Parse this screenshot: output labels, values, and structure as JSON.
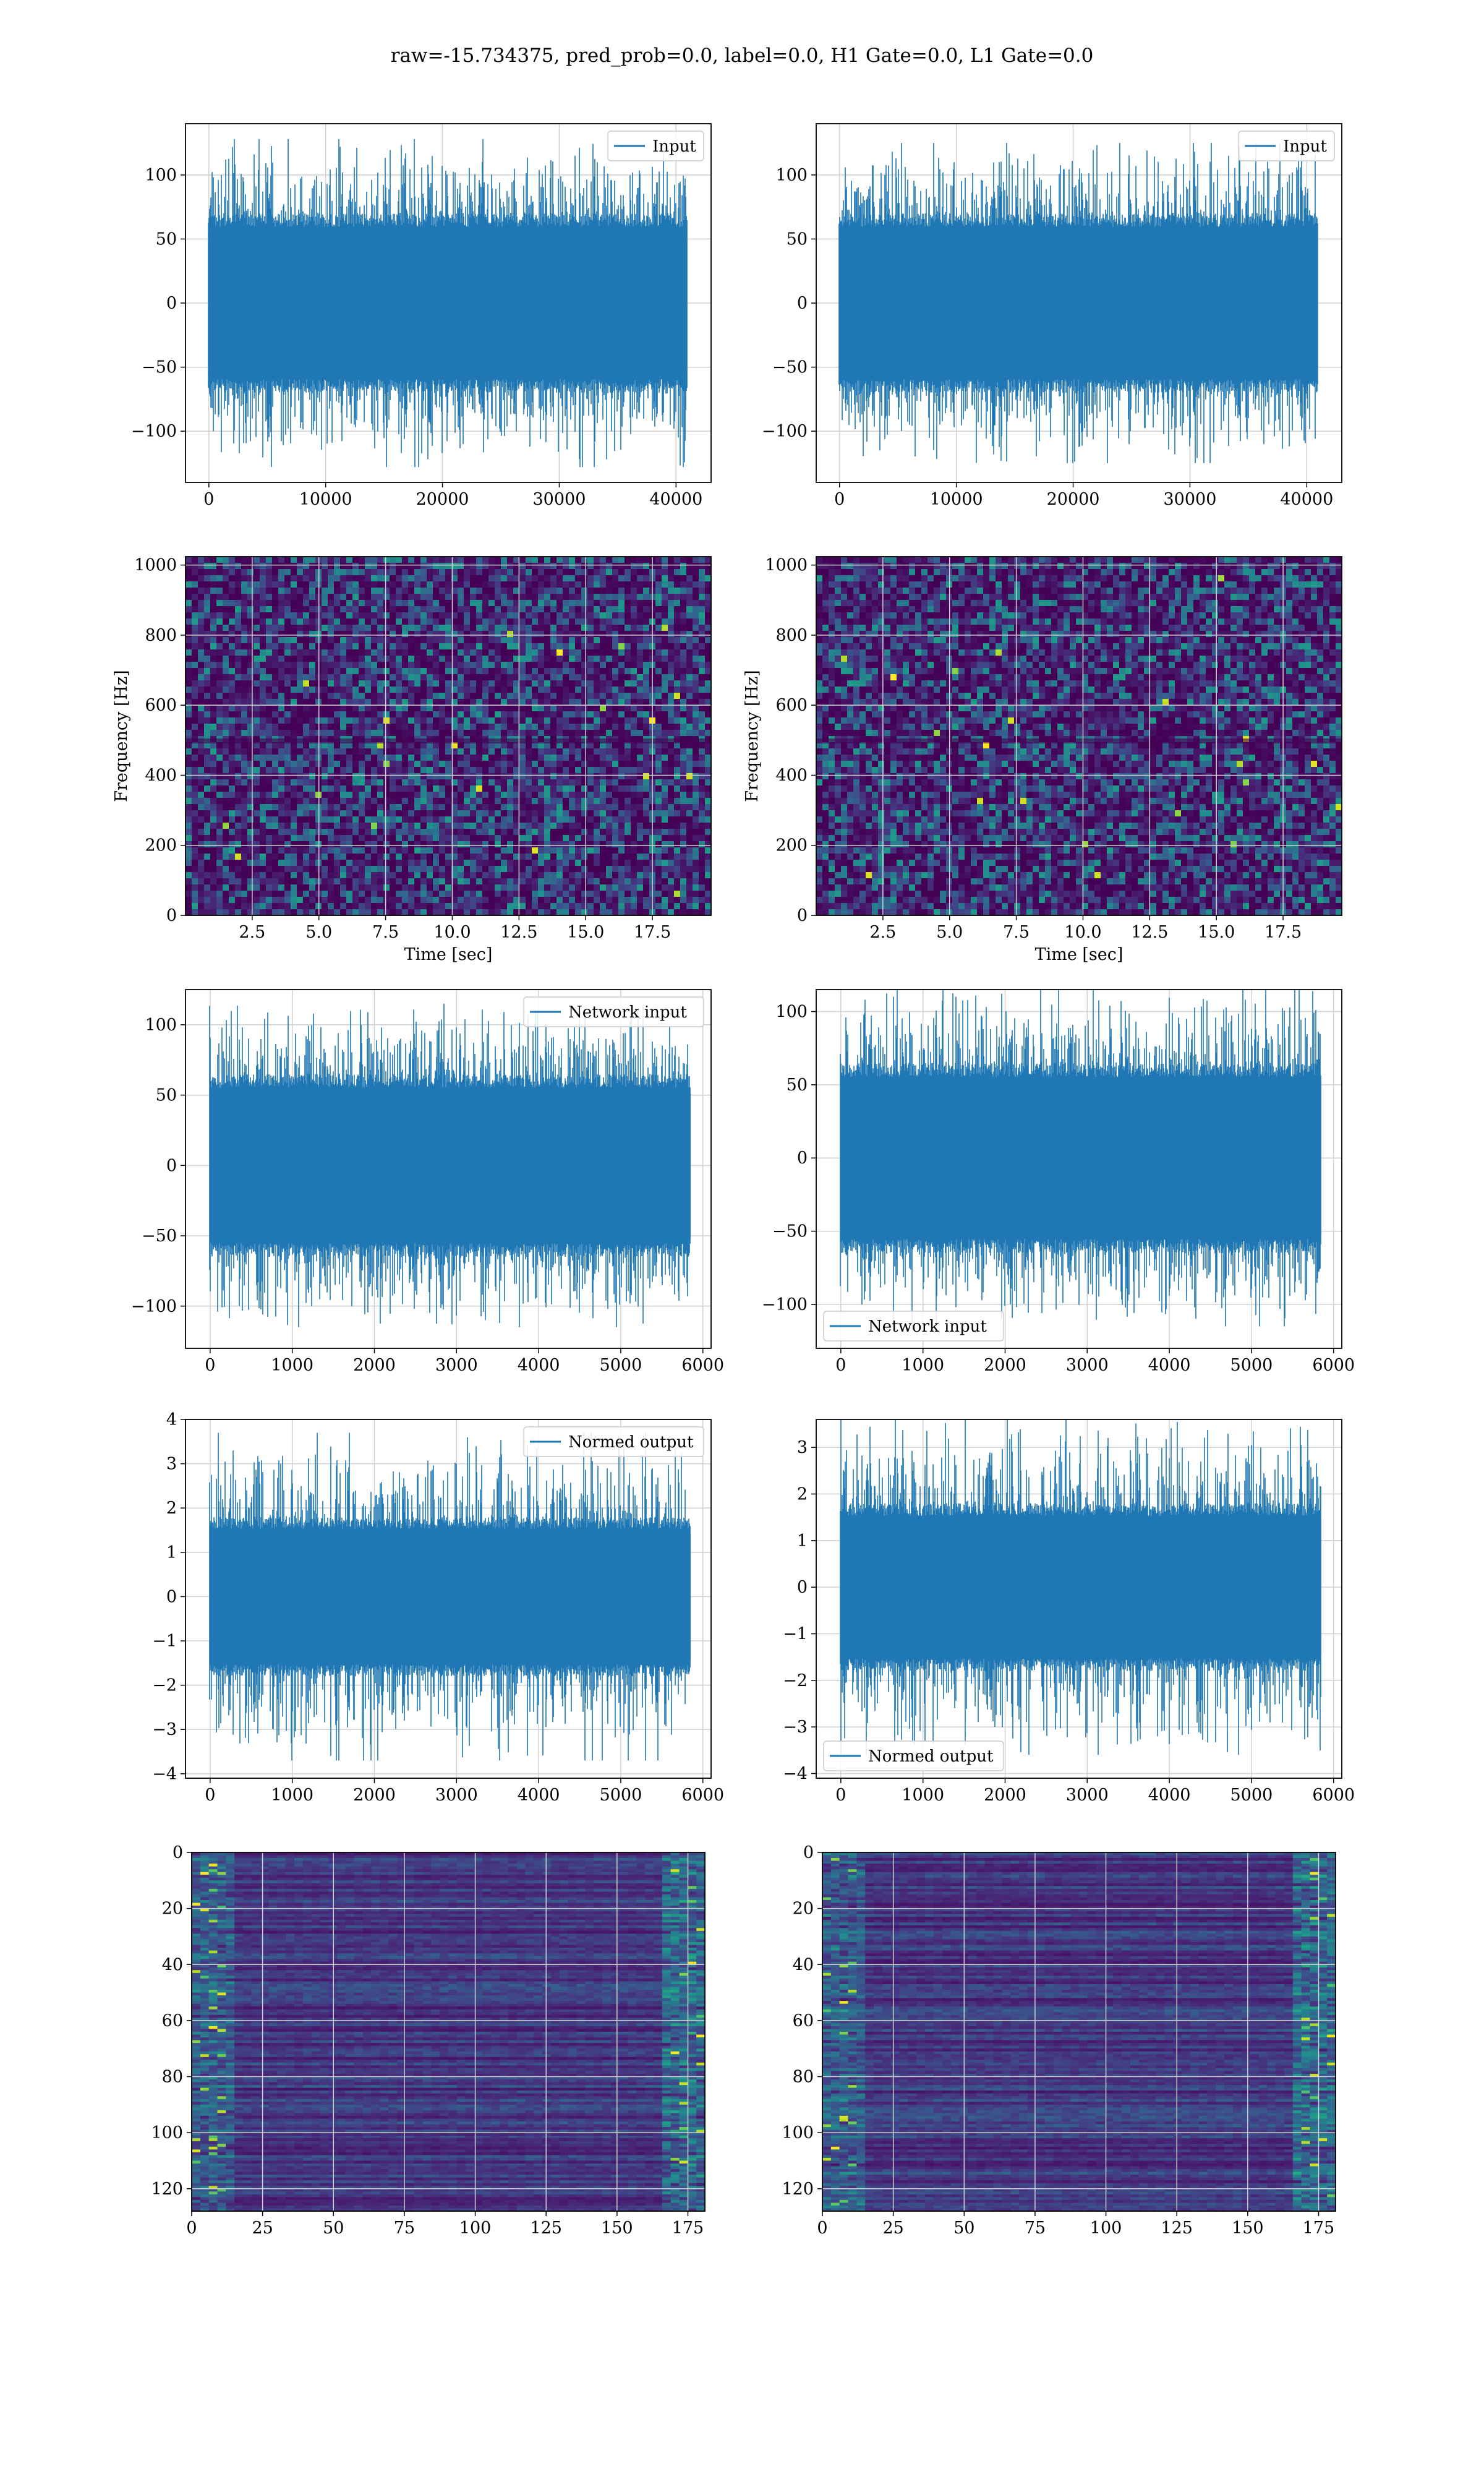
{
  "figure": {
    "title": "raw=-15.734375, pred_prob=0.0, label=0.0, H1 Gate=0.0, L1 Gate=0.0"
  },
  "colors": {
    "line": "#1f77b4",
    "grid": "#d0d0d0",
    "viridis": [
      "#440154",
      "#482475",
      "#414487",
      "#355f8d",
      "#2a788e",
      "#21908d",
      "#22a884",
      "#42be71",
      "#7ad151",
      "#bddf26",
      "#fde725"
    ]
  },
  "chart_data": [
    {
      "type": "line",
      "panel": "H1 input",
      "series": [
        {
          "name": "Input",
          "amplitude": 70,
          "spike_peak": 128
        }
      ],
      "legend": "top-right",
      "xlim": [
        -2000,
        43000
      ],
      "ylim": [
        -140,
        140
      ],
      "xticks": [
        "0",
        "10000",
        "20000",
        "30000",
        "40000"
      ],
      "xtick_values": [
        0,
        10000,
        20000,
        30000,
        40000
      ],
      "yticks": [
        "−100",
        "−50",
        "0",
        "50",
        "100"
      ],
      "ytick_values": [
        -100,
        -50,
        0,
        50,
        100
      ],
      "x_range": [
        0,
        40960
      ],
      "grid": true
    },
    {
      "type": "line",
      "panel": "L1 input",
      "series": [
        {
          "name": "Input",
          "amplitude": 70,
          "spike_peak": 125
        }
      ],
      "legend": "top-right",
      "xlim": [
        -2000,
        43000
      ],
      "ylim": [
        -140,
        140
      ],
      "xticks": [
        "0",
        "10000",
        "20000",
        "30000",
        "40000"
      ],
      "xtick_values": [
        0,
        10000,
        20000,
        30000,
        40000
      ],
      "yticks": [
        "−100",
        "−50",
        "0",
        "50",
        "100"
      ],
      "ytick_values": [
        -100,
        -50,
        0,
        50,
        100
      ],
      "x_range": [
        0,
        40960
      ],
      "grid": true
    },
    {
      "type": "heatmap",
      "panel": "H1 spectrogram",
      "xlabel": "Time [sec]",
      "ylabel": "Frequency [Hz]",
      "xlim": [
        0,
        19.7
      ],
      "ylim": [
        0,
        1024
      ],
      "xticks": [
        "2.5",
        "5.0",
        "7.5",
        "10.0",
        "12.5",
        "15.0",
        "17.5"
      ],
      "xtick_values": [
        2.5,
        5,
        7.5,
        10,
        12.5,
        15,
        17.5
      ],
      "yticks": [
        "0",
        "200",
        "400",
        "600",
        "800",
        "1000"
      ],
      "ytick_values": [
        0,
        200,
        400,
        600,
        800,
        1000
      ],
      "grid": true
    },
    {
      "type": "heatmap",
      "panel": "L1 spectrogram",
      "xlabel": "Time [sec]",
      "ylabel": "Frequency [Hz]",
      "xlim": [
        0,
        19.7
      ],
      "ylim": [
        0,
        1024
      ],
      "xticks": [
        "2.5",
        "5.0",
        "7.5",
        "10.0",
        "12.5",
        "15.0",
        "17.5"
      ],
      "xtick_values": [
        2.5,
        5,
        7.5,
        10,
        12.5,
        15,
        17.5
      ],
      "yticks": [
        "0",
        "200",
        "400",
        "600",
        "800",
        "1000"
      ],
      "ytick_values": [
        0,
        200,
        400,
        600,
        800,
        1000
      ],
      "grid": true
    },
    {
      "type": "line",
      "panel": "H1 network input",
      "series": [
        {
          "name": "Network input",
          "amplitude": 65,
          "spike_peak": 115
        }
      ],
      "legend": "top-right",
      "xlim": [
        -300,
        6100
      ],
      "ylim": [
        -130,
        125
      ],
      "xticks": [
        "0",
        "1000",
        "2000",
        "3000",
        "4000",
        "5000",
        "6000"
      ],
      "xtick_values": [
        0,
        1000,
        2000,
        3000,
        4000,
        5000,
        6000
      ],
      "yticks": [
        "−100",
        "−50",
        "0",
        "50",
        "100"
      ],
      "ytick_values": [
        -100,
        -50,
        0,
        50,
        100
      ],
      "x_range": [
        0,
        5850
      ],
      "grid": true
    },
    {
      "type": "line",
      "panel": "L1 network input",
      "series": [
        {
          "name": "Network input",
          "amplitude": 65,
          "spike_peak": 115
        }
      ],
      "legend": "lower-left",
      "xlim": [
        -300,
        6100
      ],
      "ylim": [
        -130,
        115
      ],
      "xticks": [
        "0",
        "1000",
        "2000",
        "3000",
        "4000",
        "5000",
        "6000"
      ],
      "xtick_values": [
        0,
        1000,
        2000,
        3000,
        4000,
        5000,
        6000
      ],
      "yticks": [
        "−100",
        "−50",
        "0",
        "50",
        "100"
      ],
      "ytick_values": [
        -100,
        -50,
        0,
        50,
        100
      ],
      "x_range": [
        0,
        5850
      ],
      "grid": true
    },
    {
      "type": "line",
      "panel": "H1 normed output",
      "series": [
        {
          "name": "Normed output",
          "amplitude": 1.8,
          "spike_peak": 3.7
        }
      ],
      "legend": "top-right",
      "xlim": [
        -300,
        6100
      ],
      "ylim": [
        -4.1,
        4.0
      ],
      "xticks": [
        "0",
        "1000",
        "2000",
        "3000",
        "4000",
        "5000",
        "6000"
      ],
      "xtick_values": [
        0,
        1000,
        2000,
        3000,
        4000,
        5000,
        6000
      ],
      "yticks": [
        "−4",
        "−3",
        "−2",
        "−1",
        "0",
        "1",
        "2",
        "3",
        "4"
      ],
      "ytick_values": [
        -4,
        -3,
        -2,
        -1,
        0,
        1,
        2,
        3,
        4
      ],
      "x_range": [
        0,
        5850
      ],
      "grid": true
    },
    {
      "type": "line",
      "panel": "L1 normed output",
      "series": [
        {
          "name": "Normed output",
          "amplitude": 1.8,
          "spike_peak": 3.6
        }
      ],
      "legend": "lower-left",
      "xlim": [
        -300,
        6100
      ],
      "ylim": [
        -4.1,
        3.6
      ],
      "xticks": [
        "0",
        "1000",
        "2000",
        "3000",
        "4000",
        "5000",
        "6000"
      ],
      "xtick_values": [
        0,
        1000,
        2000,
        3000,
        4000,
        5000,
        6000
      ],
      "yticks": [
        "−4",
        "−3",
        "−2",
        "−1",
        "0",
        "1",
        "2",
        "3"
      ],
      "ytick_values": [
        -4,
        -3,
        -2,
        -1,
        0,
        1,
        2,
        3
      ],
      "x_range": [
        0,
        5850
      ],
      "grid": true
    },
    {
      "type": "heatmap",
      "panel": "H1 feature map",
      "xlim": [
        0,
        181
      ],
      "ylim": [
        128,
        0
      ],
      "xticks": [
        "0",
        "25",
        "50",
        "75",
        "100",
        "125",
        "150",
        "175"
      ],
      "xtick_values": [
        0,
        25,
        50,
        75,
        100,
        125,
        150,
        175
      ],
      "yticks": [
        "0",
        "20",
        "40",
        "60",
        "80",
        "100",
        "120"
      ],
      "ytick_values": [
        0,
        20,
        40,
        60,
        80,
        100,
        120
      ],
      "shape": [
        128,
        181
      ],
      "grid": true
    },
    {
      "type": "heatmap",
      "panel": "L1 feature map",
      "xlim": [
        0,
        181
      ],
      "ylim": [
        128,
        0
      ],
      "xticks": [
        "0",
        "25",
        "50",
        "75",
        "100",
        "125",
        "150",
        "175"
      ],
      "xtick_values": [
        0,
        25,
        50,
        75,
        100,
        125,
        150,
        175
      ],
      "yticks": [
        "0",
        "20",
        "40",
        "60",
        "80",
        "100",
        "120"
      ],
      "ytick_values": [
        0,
        20,
        40,
        60,
        80,
        100,
        120
      ],
      "shape": [
        128,
        181
      ],
      "grid": true
    }
  ]
}
